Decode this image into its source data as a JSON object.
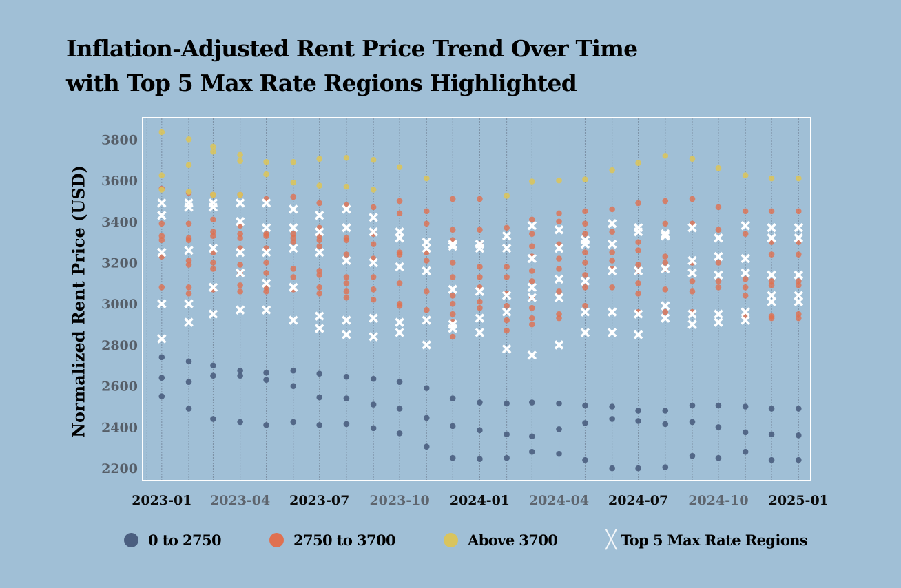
{
  "title_line1": "Inflation-Adjusted Rent Price Trend Over Time",
  "title_line2": "with Top 5 Max Rate Regions Highlighted",
  "legend": [
    {
      "label": "0 to 2750",
      "color": "#4a5e80",
      "marker": "dot"
    },
    {
      "label": "2750 to 3700",
      "color": "#e07050",
      "marker": "dot"
    },
    {
      "label": "Above 3700",
      "color": "#d9c45e",
      "marker": "dot"
    },
    {
      "label": "Top 5 Max Rate Regions",
      "color": "#ffffff",
      "marker": "x"
    }
  ],
  "chart_data": {
    "type": "scatter",
    "title": "Inflation-Adjusted Rent Price Trend Over Time with Top 5 Max Rate Regions Highlighted",
    "xlabel": "",
    "ylabel": "Normalized Rent Price (USD)",
    "x_ticks": [
      "2023-01",
      "2023-04",
      "2023-07",
      "2023-10",
      "2024-01",
      "2024-04",
      "2024-07",
      "2024-10",
      "2025-01"
    ],
    "y_ticks": [
      2200,
      2400,
      2600,
      2800,
      3000,
      3200,
      3400,
      3600,
      3800
    ],
    "ylim": [
      2140,
      3905
    ],
    "xlim": [
      "2022-12-10",
      "2025-01-15"
    ],
    "grid": "vertical dashed lines at monthly dates",
    "legend_position": "bottom",
    "dates": [
      "2023-01",
      "2023-02",
      "2023-03",
      "2023-04",
      "2023-05",
      "2023-06",
      "2023-07",
      "2023-08",
      "2023-09",
      "2023-10",
      "2023-11",
      "2023-12",
      "2024-01",
      "2024-02",
      "2024-03",
      "2024-04",
      "2024-05",
      "2024-06",
      "2024-07",
      "2024-08",
      "2024-09",
      "2024-10",
      "2024-11",
      "2024-12",
      "2025-01"
    ],
    "series": [
      {
        "name": "0 to 2750",
        "color": "#4a5e80",
        "values": [
          [
            2740,
            2640,
            2550
          ],
          [
            2720,
            2620,
            2490
          ],
          [
            2700,
            2650,
            2440
          ],
          [
            2675,
            2650,
            2425
          ],
          [
            2665,
            2630,
            2410
          ],
          [
            2675,
            2600,
            2425
          ],
          [
            2660,
            2545,
            2410
          ],
          [
            2645,
            2540,
            2415
          ],
          [
            2635,
            2510,
            2395
          ],
          [
            2620,
            2490,
            2370
          ],
          [
            2590,
            2445,
            2305
          ],
          [
            2540,
            2405,
            2250
          ],
          [
            2520,
            2385,
            2245
          ],
          [
            2515,
            2365,
            2250
          ],
          [
            2520,
            2355,
            2280
          ],
          [
            2515,
            2390,
            2270
          ],
          [
            2505,
            2420,
            2240
          ],
          [
            2500,
            2440,
            2200
          ],
          [
            2480,
            2430,
            2200
          ],
          [
            2480,
            2415,
            2205
          ],
          [
            2505,
            2425,
            2260
          ],
          [
            2505,
            2400,
            2250
          ],
          [
            2500,
            2375,
            2280
          ],
          [
            2490,
            2365,
            2240
          ],
          [
            2490,
            2360,
            2240
          ]
        ]
      },
      {
        "name": "2750 to 3700",
        "color": "#e07050",
        "values": [
          [
            3080,
            3230,
            3310,
            3330,
            3390,
            3560
          ],
          [
            3080,
            3050,
            3190,
            3210,
            3310,
            3320,
            3390,
            3540
          ],
          [
            3070,
            3170,
            3200,
            3250,
            3330,
            3350,
            3410,
            3530
          ],
          [
            3060,
            3090,
            3150,
            3190,
            3270,
            3320,
            3340,
            3380,
            3530
          ],
          [
            3060,
            3080,
            3150,
            3200,
            3270,
            3330,
            3340,
            3510
          ],
          [
            3070,
            3130,
            3170,
            3300,
            3320,
            3340,
            3520
          ],
          [
            3050,
            3080,
            3140,
            3160,
            3280,
            3310,
            3330,
            3370,
            3490
          ],
          [
            3030,
            3060,
            3100,
            3130,
            3240,
            3310,
            3320,
            3480
          ],
          [
            3020,
            3070,
            3130,
            3220,
            3290,
            3340,
            3470
          ],
          [
            2990,
            3000,
            3100,
            3240,
            3250,
            3440,
            3500
          ],
          [
            2970,
            3060,
            3210,
            3250,
            3390,
            3450
          ],
          [
            2840,
            2910,
            2950,
            3000,
            3040,
            3130,
            3200,
            3310,
            3360,
            3510
          ],
          [
            2980,
            3010,
            3080,
            3130,
            3180,
            3290,
            3360,
            3510
          ],
          [
            2870,
            2920,
            2990,
            3050,
            3130,
            3180,
            3370
          ],
          [
            2900,
            2930,
            2980,
            3030,
            3110,
            3160,
            3230,
            3280,
            3340,
            3410
          ],
          [
            2930,
            2950,
            3060,
            3170,
            3220,
            3290,
            3400,
            3440
          ],
          [
            2990,
            3080,
            3140,
            3200,
            3250,
            3340,
            3390,
            3450
          ],
          [
            3080,
            3170,
            3210,
            3250,
            3350,
            3460
          ],
          [
            2960,
            3050,
            3100,
            3160,
            3190,
            3260,
            3300,
            3490
          ],
          [
            2960,
            3070,
            3170,
            3200,
            3230,
            3390,
            3500
          ],
          [
            2960,
            3060,
            3110,
            3200,
            3390,
            3510
          ],
          [
            3080,
            3110,
            3200,
            3360,
            3470
          ],
          [
            2940,
            3040,
            3080,
            3120,
            3340,
            3450
          ],
          [
            2930,
            2940,
            3090,
            3110,
            3240,
            3300,
            3450
          ],
          [
            2930,
            2950,
            3090,
            3110,
            3240,
            3300,
            3450
          ]
        ]
      },
      {
        "name": "Above 3700",
        "color": "#d9c45e",
        "values": [
          [
            3835,
            3625,
            3555
          ],
          [
            3800,
            3675,
            3545
          ],
          [
            3765,
            3740,
            3530
          ],
          [
            3725,
            3695,
            3530
          ],
          [
            3690,
            3630
          ],
          [
            3690,
            3590
          ],
          [
            3705,
            3575
          ],
          [
            3710,
            3570
          ],
          [
            3700,
            3555
          ],
          [
            3665
          ],
          [
            3610
          ],
          [],
          [],
          [
            3525
          ],
          [
            3595
          ],
          [
            3600
          ],
          [
            3605
          ],
          [
            3650
          ],
          [
            3685
          ],
          [
            3720
          ],
          [
            3705
          ],
          [
            3660
          ],
          [
            3625
          ],
          [
            3610
          ],
          [
            3610
          ]
        ]
      },
      {
        "name": "Top 5 Max Rate Regions",
        "color": "#ffffff",
        "values": [
          [
            3490,
            3430,
            3250,
            3000,
            2830
          ],
          [
            3490,
            3470,
            3260,
            3000,
            2910
          ],
          [
            3490,
            3470,
            3270,
            3080,
            2950
          ],
          [
            3490,
            3400,
            3250,
            3150,
            2970
          ],
          [
            3490,
            3370,
            3250,
            3100,
            2970
          ],
          [
            3460,
            3370,
            3270,
            3080,
            2920
          ],
          [
            3430,
            3350,
            3250,
            2940,
            2880
          ],
          [
            3460,
            3370,
            3210,
            2920,
            2850
          ],
          [
            3420,
            3350,
            3200,
            2930,
            2840
          ],
          [
            3350,
            3320,
            3180,
            2910,
            2860
          ],
          [
            3300,
            3270,
            3160,
            2920,
            2800
          ],
          [
            3290,
            3280,
            3070,
            2900,
            2880
          ],
          [
            3290,
            3270,
            3060,
            2930,
            2860
          ],
          [
            3330,
            3270,
            3040,
            2960,
            2780
          ],
          [
            3380,
            3220,
            3080,
            3030,
            2750
          ],
          [
            3360,
            3270,
            3120,
            3030,
            2800
          ],
          [
            3310,
            3290,
            3110,
            2960,
            2860
          ],
          [
            3390,
            3290,
            3160,
            2960,
            2860
          ],
          [
            3370,
            3350,
            3160,
            2950,
            2850
          ],
          [
            3340,
            3330,
            3170,
            2990,
            2930
          ],
          [
            3370,
            3210,
            3150,
            2950,
            2900
          ],
          [
            3320,
            3230,
            3140,
            2950,
            2910
          ],
          [
            3380,
            3220,
            3150,
            2960,
            2920
          ],
          [
            3370,
            3320,
            3140,
            3040,
            3010
          ],
          [
            3370,
            3320,
            3140,
            3040,
            3010
          ]
        ]
      }
    ]
  }
}
